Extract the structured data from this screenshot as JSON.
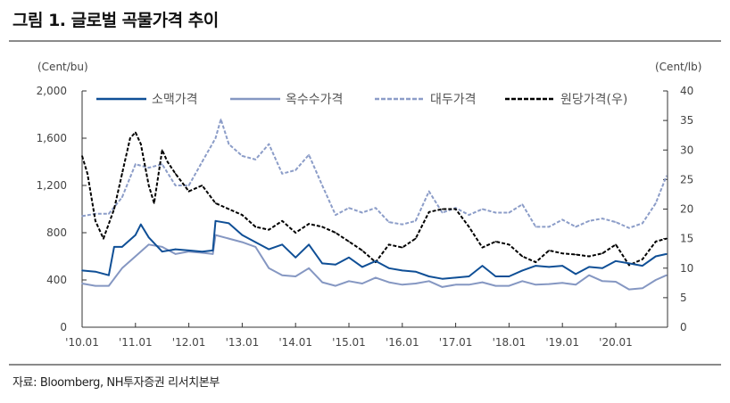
{
  "title": "그림 1. 글로벌 곡물가격 추이",
  "source": "자료: Bloomberg, NH투자증권 리서치본부",
  "chart_data": {
    "type": "line",
    "title": "그림 1. 글로벌 곡물가격 추이",
    "ylabel_left": "(Cent/bu)",
    "ylabel_right": "(Cent/lb)",
    "ylim_left": [
      0,
      2000
    ],
    "ylim_right": [
      0,
      40
    ],
    "yticks_left": [
      "0",
      "400",
      "800",
      "1,200",
      "1,600",
      "2,000"
    ],
    "yticks_left_values": [
      0,
      400,
      800,
      1200,
      1600,
      2000
    ],
    "yticks_right": [
      "0",
      "5",
      "10",
      "15",
      "20",
      "25",
      "30",
      "35",
      "40"
    ],
    "yticks_right_values": [
      0,
      5,
      10,
      15,
      20,
      25,
      30,
      35,
      40
    ],
    "xlim": [
      2010.0,
      2020.97
    ],
    "xticks": [
      "'10.01",
      "'11.01",
      "'12.01",
      "'13.01",
      "'14.01",
      "'15.01",
      "'16.01",
      "'17.01",
      "'18.01",
      "'19.01",
      "'20.01"
    ],
    "xticks_values": [
      2010,
      2011,
      2012,
      2013,
      2014,
      2015,
      2016,
      2017,
      2018,
      2019,
      2020
    ],
    "grid": false,
    "legend_position": "top",
    "series": [
      {
        "name": "소맥가격",
        "axis": "left",
        "color": "#0f4f96",
        "dash": "solid",
        "x": [
          2010.0,
          2010.25,
          2010.5,
          2010.6,
          2010.75,
          2011.0,
          2011.1,
          2011.25,
          2011.5,
          2011.75,
          2012.0,
          2012.25,
          2012.45,
          2012.5,
          2012.75,
          2013.0,
          2013.25,
          2013.5,
          2013.75,
          2014.0,
          2014.25,
          2014.5,
          2014.75,
          2015.0,
          2015.25,
          2015.5,
          2015.75,
          2016.0,
          2016.25,
          2016.5,
          2016.75,
          2017.0,
          2017.25,
          2017.5,
          2017.75,
          2018.0,
          2018.25,
          2018.5,
          2018.75,
          2019.0,
          2019.25,
          2019.5,
          2019.75,
          2020.0,
          2020.25,
          2020.5,
          2020.75,
          2020.95
        ],
        "values": [
          480,
          470,
          440,
          680,
          680,
          780,
          870,
          760,
          640,
          660,
          650,
          640,
          650,
          900,
          880,
          780,
          720,
          660,
          700,
          590,
          700,
          540,
          530,
          590,
          510,
          560,
          500,
          480,
          470,
          430,
          410,
          420,
          430,
          520,
          430,
          430,
          480,
          520,
          510,
          520,
          450,
          510,
          500,
          560,
          540,
          520,
          600,
          620
        ]
      },
      {
        "name": "옥수수가격",
        "axis": "left",
        "color": "#8597c2",
        "dash": "solid",
        "x": [
          2010.0,
          2010.25,
          2010.5,
          2010.75,
          2011.0,
          2011.25,
          2011.5,
          2011.75,
          2012.0,
          2012.25,
          2012.45,
          2012.5,
          2012.75,
          2013.0,
          2013.25,
          2013.5,
          2013.75,
          2014.0,
          2014.25,
          2014.5,
          2014.75,
          2015.0,
          2015.25,
          2015.5,
          2015.75,
          2016.0,
          2016.25,
          2016.5,
          2016.75,
          2017.0,
          2017.25,
          2017.5,
          2017.75,
          2018.0,
          2018.25,
          2018.5,
          2018.75,
          2019.0,
          2019.25,
          2019.5,
          2019.75,
          2020.0,
          2020.25,
          2020.5,
          2020.75,
          2020.95
        ],
        "values": [
          370,
          350,
          350,
          500,
          600,
          700,
          680,
          620,
          640,
          630,
          620,
          780,
          750,
          720,
          680,
          500,
          440,
          430,
          500,
          380,
          350,
          390,
          370,
          420,
          380,
          360,
          370,
          390,
          340,
          360,
          360,
          380,
          350,
          350,
          390,
          360,
          365,
          375,
          360,
          440,
          390,
          385,
          320,
          330,
          400,
          440
        ]
      },
      {
        "name": "대두가격",
        "axis": "left",
        "color": "#8c9dc8",
        "dash": "dashed",
        "x": [
          2010.0,
          2010.25,
          2010.5,
          2010.75,
          2011.0,
          2011.25,
          2011.5,
          2011.75,
          2012.0,
          2012.25,
          2012.5,
          2012.6,
          2012.75,
          2013.0,
          2013.25,
          2013.5,
          2013.75,
          2014.0,
          2014.25,
          2014.5,
          2014.75,
          2015.0,
          2015.25,
          2015.5,
          2015.75,
          2016.0,
          2016.25,
          2016.5,
          2016.75,
          2017.0,
          2017.25,
          2017.5,
          2017.75,
          2018.0,
          2018.25,
          2018.5,
          2018.75,
          2019.0,
          2019.25,
          2019.5,
          2019.75,
          2020.0,
          2020.25,
          2020.5,
          2020.75,
          2020.95
        ],
        "values": [
          940,
          960,
          960,
          1100,
          1380,
          1350,
          1380,
          1200,
          1200,
          1400,
          1600,
          1760,
          1550,
          1450,
          1420,
          1550,
          1300,
          1330,
          1460,
          1200,
          950,
          1010,
          970,
          1010,
          890,
          870,
          900,
          1150,
          970,
          1010,
          950,
          1000,
          970,
          970,
          1040,
          850,
          850,
          910,
          850,
          900,
          920,
          890,
          840,
          880,
          1050,
          1280
        ]
      },
      {
        "name": "원당가격(우)",
        "axis": "right",
        "color": "#000000",
        "dash": "dashed",
        "x": [
          2010.0,
          2010.1,
          2010.25,
          2010.4,
          2010.6,
          2010.75,
          2010.9,
          2011.0,
          2011.1,
          2011.25,
          2011.35,
          2011.5,
          2011.6,
          2011.75,
          2012.0,
          2012.25,
          2012.5,
          2012.75,
          2013.0,
          2013.25,
          2013.5,
          2013.75,
          2014.0,
          2014.25,
          2014.5,
          2014.75,
          2015.0,
          2015.25,
          2015.5,
          2015.75,
          2016.0,
          2016.25,
          2016.5,
          2016.75,
          2017.0,
          2017.25,
          2017.5,
          2017.75,
          2018.0,
          2018.25,
          2018.5,
          2018.75,
          2019.0,
          2019.25,
          2019.5,
          2019.75,
          2020.0,
          2020.25,
          2020.5,
          2020.75,
          2020.95
        ],
        "values": [
          29,
          26,
          18,
          15,
          20,
          26,
          32,
          33,
          31,
          24,
          21,
          30,
          28,
          26,
          23,
          24,
          21,
          20,
          19,
          17,
          16.5,
          18,
          16,
          17.5,
          17,
          16,
          14.5,
          13,
          11,
          14,
          13.5,
          15,
          19.5,
          20,
          20,
          17,
          13.5,
          14.5,
          14,
          12,
          11,
          13,
          12.5,
          12.3,
          12,
          12.5,
          14,
          10.5,
          11.5,
          14.5,
          15
        ]
      }
    ]
  }
}
